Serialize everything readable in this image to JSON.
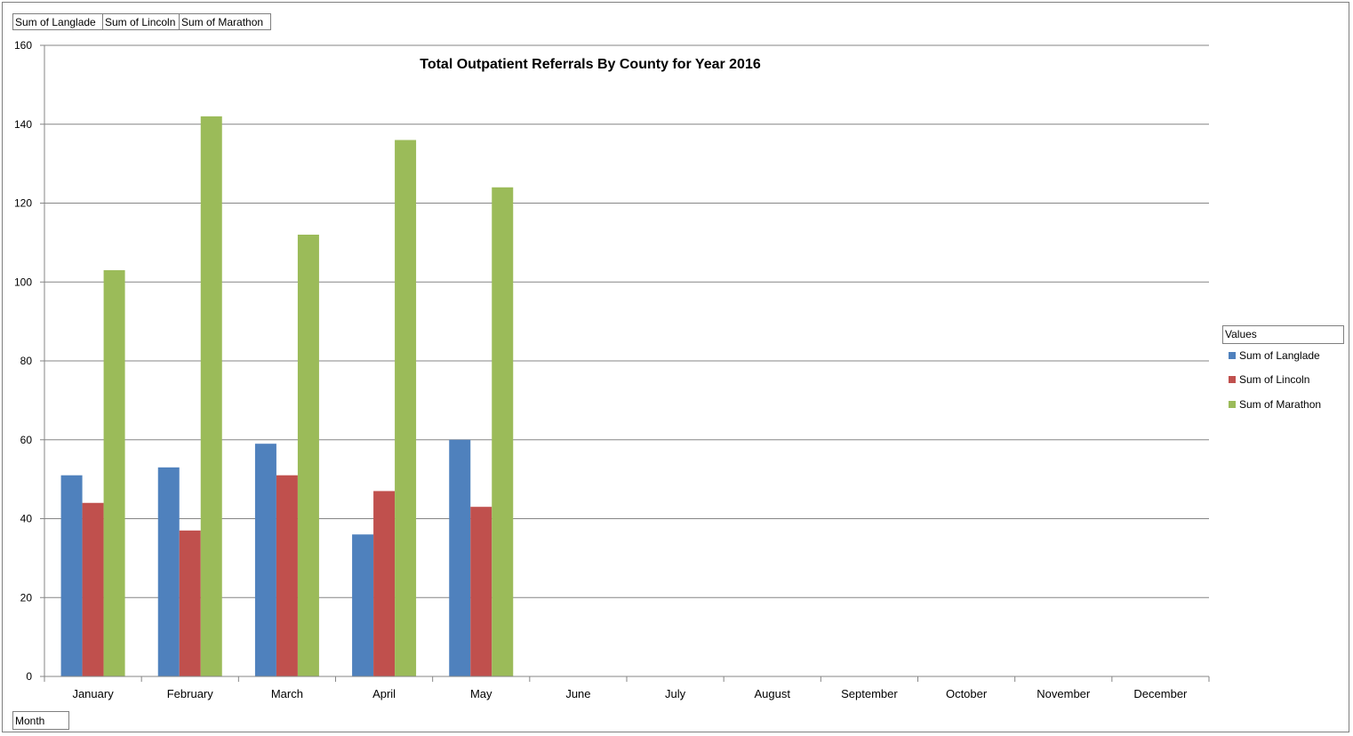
{
  "field_buttons": {
    "values": [
      "Sum of Langlade",
      "Sum of Lincoln",
      "Sum of Marathon"
    ],
    "axis": "Month"
  },
  "legend": {
    "title": "Values",
    "placement": "right"
  },
  "colors": {
    "Sum of Langlade": "#4f81bd",
    "Sum of Lincoln": "#c0504d",
    "Sum of Marathon": "#9bbb59",
    "gridline": "#868686"
  },
  "chart_data": {
    "type": "bar",
    "title": "Total Outpatient Referrals By County for Year 2016",
    "categories": [
      "January",
      "February",
      "March",
      "April",
      "May",
      "June",
      "July",
      "August",
      "September",
      "October",
      "November",
      "December"
    ],
    "series": [
      {
        "name": "Sum of Langlade",
        "values": [
          51,
          53,
          59,
          36,
          60,
          null,
          null,
          null,
          null,
          null,
          null,
          null
        ]
      },
      {
        "name": "Sum of Lincoln",
        "values": [
          44,
          37,
          51,
          47,
          43,
          null,
          null,
          null,
          null,
          null,
          null,
          null
        ]
      },
      {
        "name": "Sum of Marathon",
        "values": [
          103,
          142,
          112,
          136,
          124,
          null,
          null,
          null,
          null,
          null,
          null,
          null
        ]
      }
    ],
    "ylim": [
      0,
      160
    ],
    "yticks": [
      0,
      20,
      40,
      60,
      80,
      100,
      120,
      140,
      160
    ],
    "grid": true
  }
}
